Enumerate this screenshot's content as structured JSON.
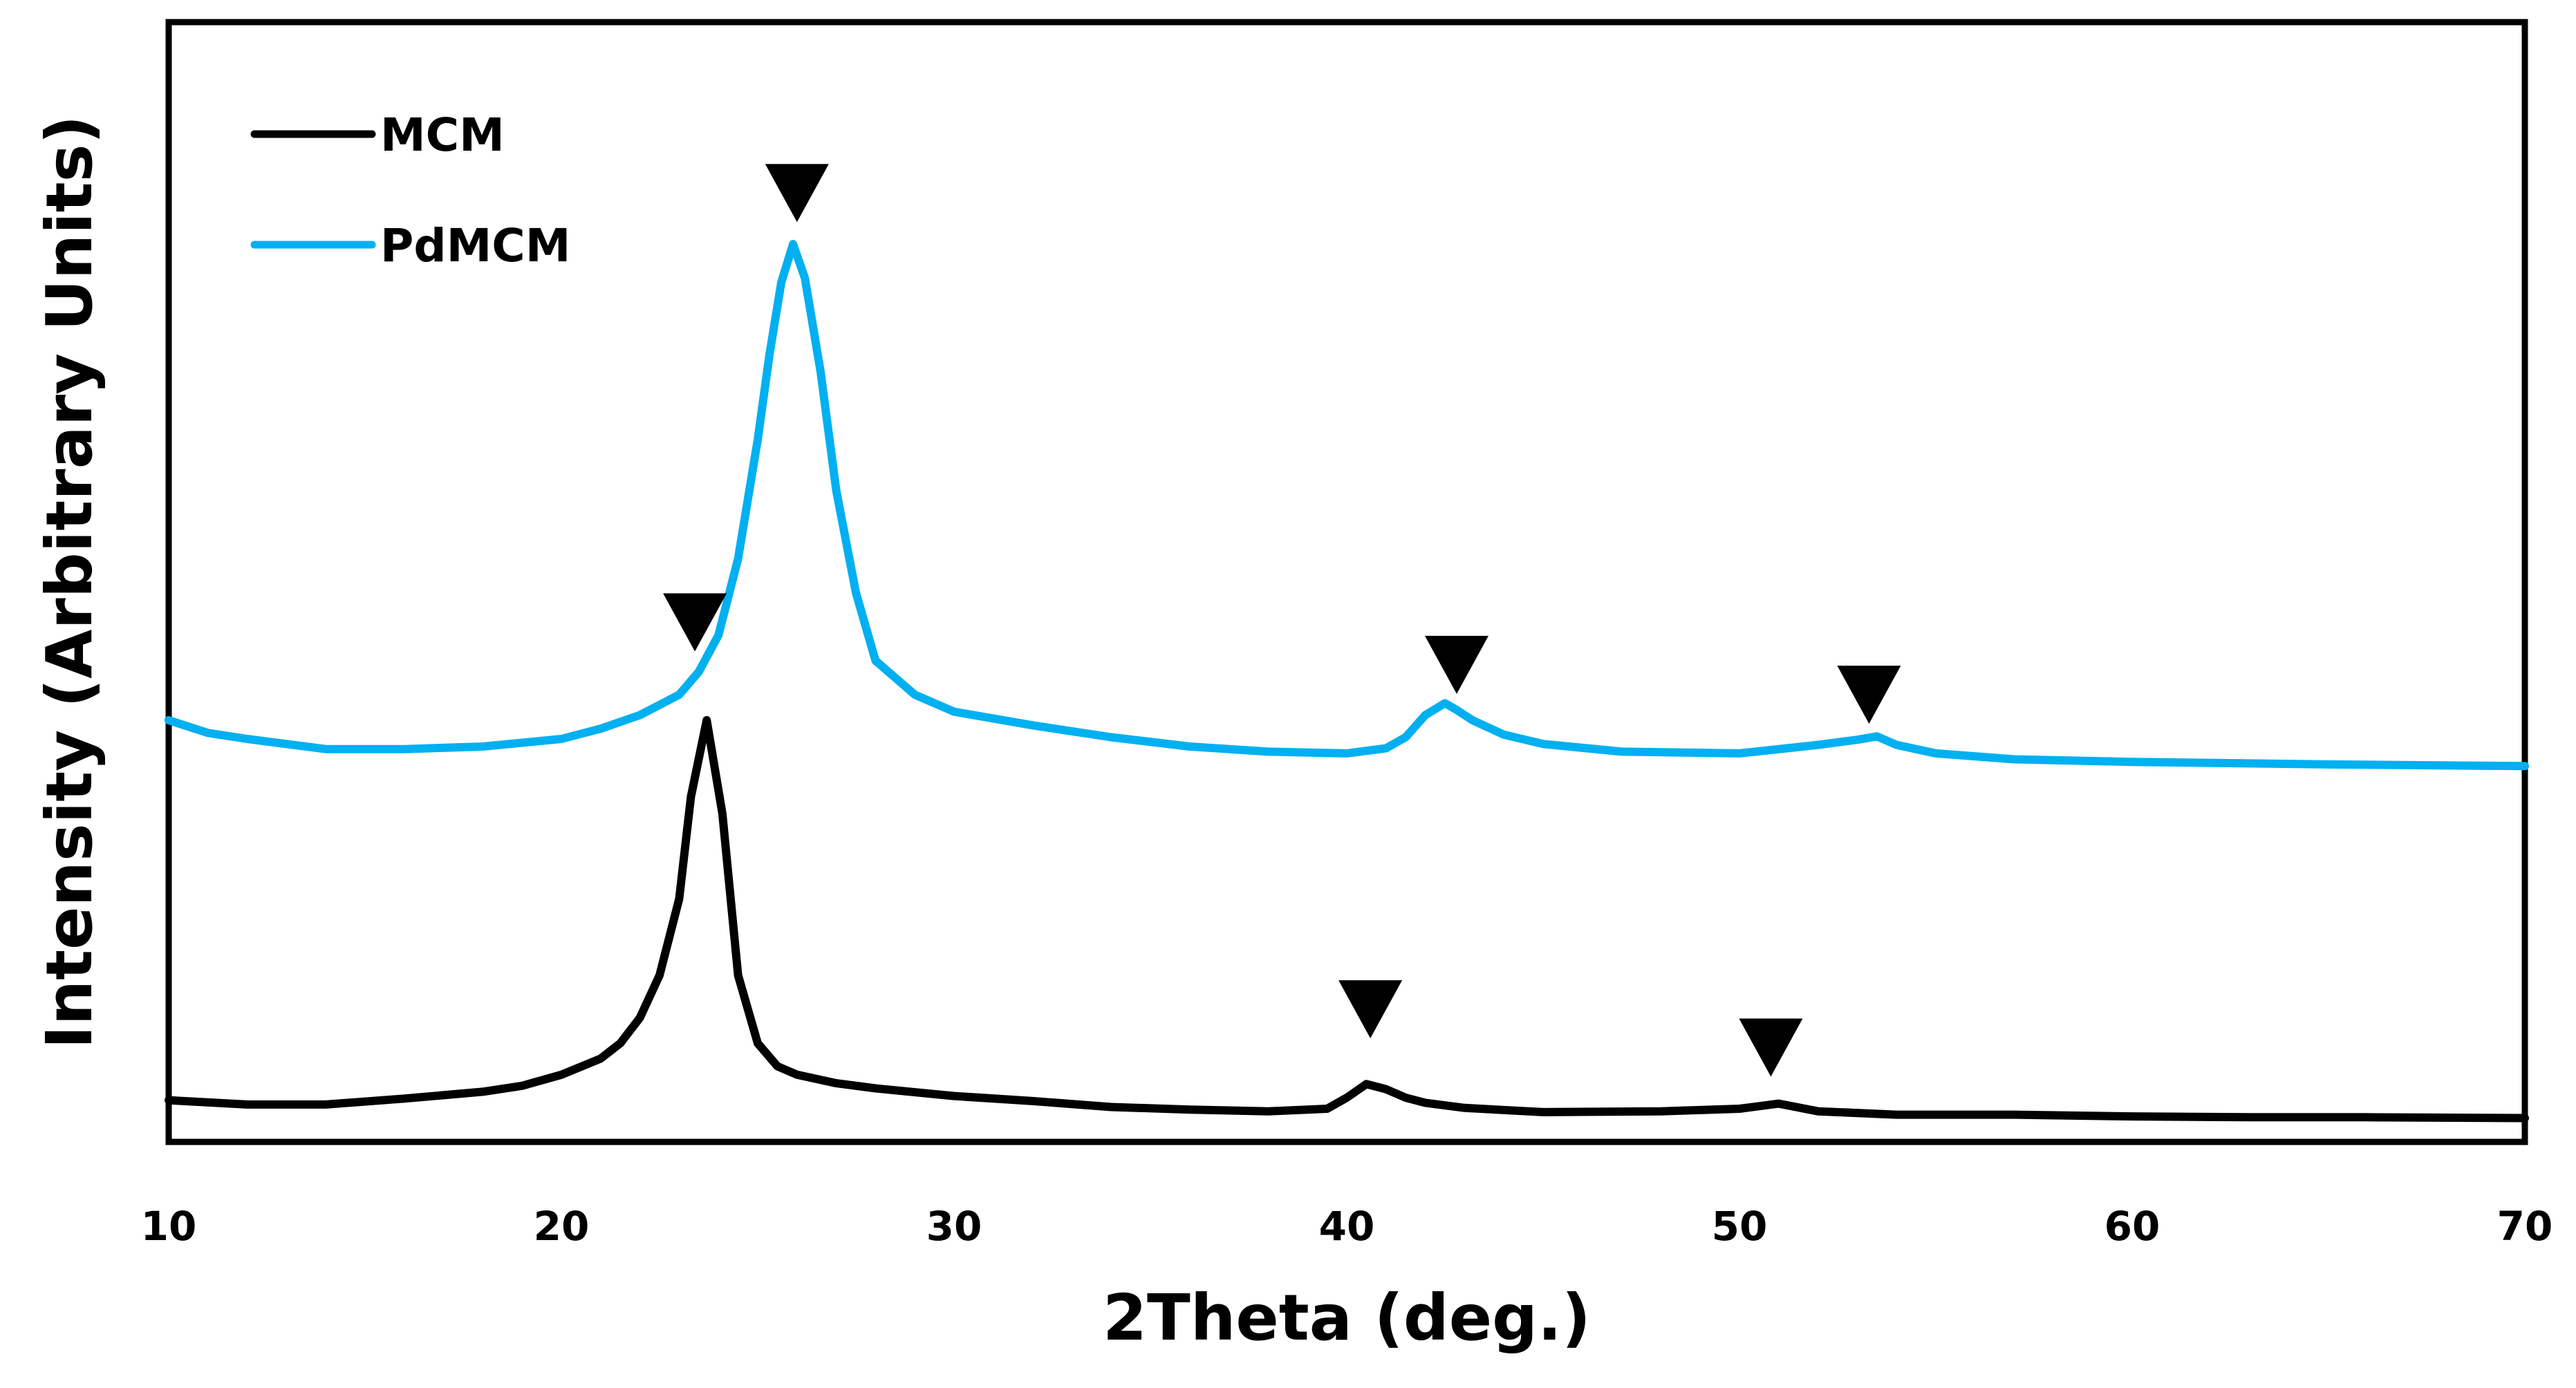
{
  "chart_data": {
    "type": "line",
    "title": "",
    "xlabel": "2Theta (deg.)",
    "ylabel": "Intensity (Arbitrary Units)",
    "xlim": [
      10,
      70
    ],
    "ylim": [
      0,
      100
    ],
    "xticks": [
      10,
      20,
      30,
      40,
      50,
      60,
      70
    ],
    "yticks_shown": false,
    "grid": false,
    "legend_position": "top-left",
    "series": [
      {
        "name": "MCM",
        "color": "#000000",
        "x": [
          10,
          12,
          14,
          16,
          18,
          19,
          20,
          21,
          21.5,
          22,
          22.5,
          23,
          23.3,
          23.7,
          24.1,
          24.5,
          25,
          25.5,
          26,
          27,
          28,
          30,
          32,
          34,
          36,
          38,
          39.5,
          40,
          40.5,
          41,
          41.5,
          42,
          43,
          45,
          48,
          50,
          51,
          52,
          54,
          57,
          60,
          63,
          66,
          70
        ],
        "y": [
          2.3,
          1.8,
          1.8,
          2.5,
          3.3,
          4.0,
          5.3,
          7.2,
          9.0,
          12.0,
          17.0,
          26.0,
          38.0,
          47.0,
          36.0,
          17.0,
          9.0,
          6.3,
          5.3,
          4.3,
          3.7,
          2.8,
          2.2,
          1.5,
          1.2,
          1.0,
          1.3,
          2.6,
          4.2,
          3.6,
          2.6,
          2.0,
          1.4,
          0.9,
          1.0,
          1.3,
          1.9,
          1.0,
          0.6,
          0.6,
          0.4,
          0.3,
          0.3,
          0.2
        ]
      },
      {
        "name": "PdMCM",
        "color": "#00B0F0",
        "x": [
          10,
          11,
          12,
          14,
          16,
          18,
          20,
          21,
          22,
          23,
          23.5,
          24,
          24.5,
          25,
          25.3,
          25.6,
          25.9,
          26.2,
          26.6,
          27,
          27.5,
          28,
          29,
          30,
          32,
          34,
          36,
          38,
          40,
          41,
          41.5,
          42,
          42.5,
          42.8,
          43.2,
          44,
          45,
          47,
          50,
          52,
          53,
          53.5,
          54,
          55,
          57,
          60,
          65,
          70
        ],
        "y": [
          47.0,
          45.5,
          44.8,
          43.6,
          43.6,
          43.9,
          44.8,
          46.0,
          47.6,
          50.0,
          52.7,
          57.0,
          66.0,
          80.0,
          90.0,
          98.5,
          103.0,
          99.0,
          88.0,
          74.0,
          62.0,
          54.0,
          50.0,
          48.0,
          46.4,
          45.0,
          43.9,
          43.3,
          43.1,
          43.7,
          45.0,
          47.6,
          49.0,
          48.2,
          47.0,
          45.3,
          44.2,
          43.3,
          43.1,
          44.1,
          44.7,
          45.1,
          44.1,
          43.1,
          42.4,
          42.1,
          41.8,
          41.6
        ]
      }
    ],
    "annotations": [
      {
        "symbol": "▼",
        "series": "PdMCM",
        "x": 26.0,
        "y": 109.0
      },
      {
        "symbol": "▼",
        "series": "PdMCM",
        "x": 23.4,
        "y": 58.5
      },
      {
        "symbol": "▼",
        "series": "PdMCM",
        "x": 42.8,
        "y": 53.5
      },
      {
        "symbol": "▼",
        "series": "PdMCM",
        "x": 53.3,
        "y": 50.0
      },
      {
        "symbol": "▼",
        "series": "MCM",
        "x": 40.6,
        "y": 13.0
      },
      {
        "symbol": "▼",
        "series": "MCM",
        "x": 50.8,
        "y": 8.5
      }
    ]
  }
}
